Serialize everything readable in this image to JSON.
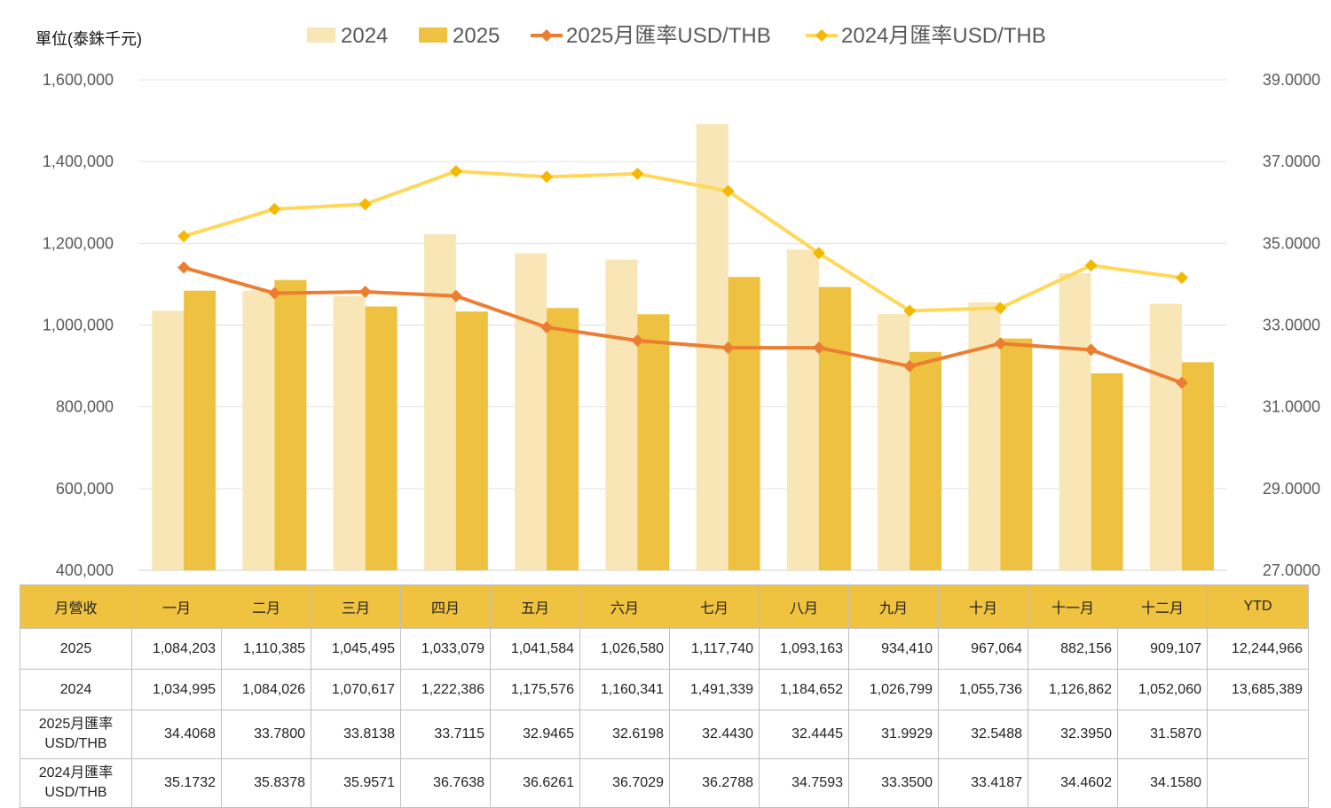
{
  "chart_data": {
    "type": "bar",
    "unit_label": "單位(泰銖千元)",
    "categories": [
      "一月",
      "二月",
      "三月",
      "四月",
      "五月",
      "六月",
      "七月",
      "八月",
      "九月",
      "十月",
      "十一月",
      "十二月"
    ],
    "series": [
      {
        "name": "2024",
        "kind": "bar",
        "axis": "left",
        "color": "#f9e6b6",
        "values": [
          1034995,
          1084026,
          1070617,
          1222386,
          1175576,
          1160341,
          1491339,
          1184652,
          1026799,
          1055736,
          1126862,
          1052060
        ]
      },
      {
        "name": "2025",
        "kind": "bar",
        "axis": "left",
        "color": "#eec240",
        "values": [
          1084203,
          1110385,
          1045495,
          1033079,
          1041584,
          1026580,
          1117740,
          1093163,
          934410,
          967064,
          882156,
          909107
        ]
      },
      {
        "name": "2025月匯率USD/THB",
        "kind": "line",
        "axis": "right",
        "color": "#ed7d31",
        "marker": "#ed7d31",
        "values": [
          34.4068,
          33.78,
          33.8138,
          33.7115,
          32.9465,
          32.6198,
          32.443,
          32.4445,
          31.9929,
          32.5488,
          32.395,
          31.587
        ]
      },
      {
        "name": "2024月匯率USD/THB",
        "kind": "line",
        "axis": "right",
        "color": "#ffd85a",
        "marker": "#f5b800",
        "values": [
          35.1732,
          35.8378,
          35.9571,
          36.7638,
          36.6261,
          36.7029,
          36.2788,
          34.7593,
          33.35,
          33.4187,
          34.4602,
          34.158
        ]
      }
    ],
    "y_left": {
      "min": 400000,
      "max": 1600000,
      "step": 200000,
      "ticks": [
        "400,000",
        "600,000",
        "800,000",
        "1,000,000",
        "1,200,000",
        "1,400,000",
        "1,600,000"
      ]
    },
    "y_right": {
      "min": 27,
      "max": 39,
      "step": 2,
      "ticks": [
        "27.0000",
        "29.0000",
        "31.0000",
        "33.0000",
        "35.0000",
        "37.0000",
        "39.0000"
      ]
    },
    "legend_position": "top",
    "grid": true
  },
  "table": {
    "header": [
      "月營收",
      "一月",
      "二月",
      "三月",
      "四月",
      "五月",
      "六月",
      "七月",
      "八月",
      "九月",
      "十月",
      "十一月",
      "十二月",
      "YTD"
    ],
    "rows": [
      {
        "label": "2025",
        "cells": [
          "1,084,203",
          "1,110,385",
          "1,045,495",
          "1,033,079",
          "1,041,584",
          "1,026,580",
          "1,117,740",
          "1,093,163",
          "934,410",
          "967,064",
          "882,156",
          "909,107",
          "12,244,966"
        ]
      },
      {
        "label": "2024",
        "cells": [
          "1,034,995",
          "1,084,026",
          "1,070,617",
          "1,222,386",
          "1,175,576",
          "1,160,341",
          "1,491,339",
          "1,184,652",
          "1,026,799",
          "1,055,736",
          "1,126,862",
          "1,052,060",
          "13,685,389"
        ]
      },
      {
        "label_line1": "2025月匯率",
        "label_line2": "USD/THB",
        "cells": [
          "34.4068",
          "33.7800",
          "33.8138",
          "33.7115",
          "32.9465",
          "32.6198",
          "32.4430",
          "32.4445",
          "31.9929",
          "32.5488",
          "32.3950",
          "31.5870",
          ""
        ]
      },
      {
        "label_line1": "2024月匯率",
        "label_line2": "USD/THB",
        "cells": [
          "35.1732",
          "35.8378",
          "35.9571",
          "36.7638",
          "36.6261",
          "36.7029",
          "36.2788",
          "34.7593",
          "33.3500",
          "33.4187",
          "34.4602",
          "34.1580",
          ""
        ]
      }
    ]
  }
}
